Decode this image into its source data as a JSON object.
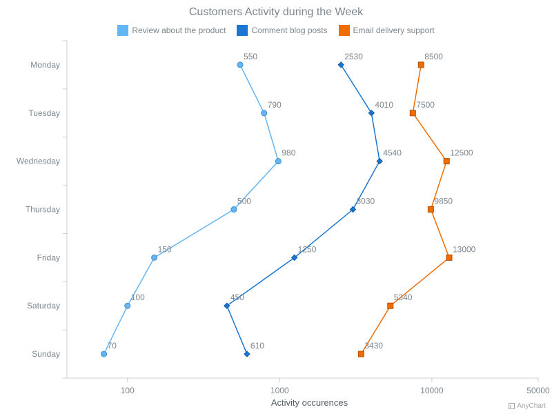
{
  "chart_data": {
    "type": "line",
    "title": "Customers Activity during the Week",
    "xlabel": "Activity occurences",
    "ylabel": "",
    "x_scale": "log",
    "xlim": [
      40,
      50000
    ],
    "x_ticks": [
      100,
      1000,
      10000,
      50000
    ],
    "x_tick_labels": [
      "100",
      "1000",
      "10000",
      "50000"
    ],
    "categories": [
      "Monday",
      "Tuesday",
      "Wednesday",
      "Thursday",
      "Friday",
      "Saturday",
      "Sunday"
    ],
    "legend_position": "top",
    "grid": false,
    "series": [
      {
        "name": "Review about the product",
        "color": "#64b5f6",
        "marker": "circle",
        "values": [
          550,
          790,
          980,
          500,
          150,
          100,
          70
        ]
      },
      {
        "name": "Comment blog posts",
        "color": "#1976d2",
        "marker": "diamond",
        "values": [
          2530,
          4010,
          4540,
          3030,
          1250,
          450,
          610
        ]
      },
      {
        "name": "Email delivery support",
        "color": "#ef6c00",
        "marker": "square",
        "values": [
          8500,
          7500,
          12500,
          9850,
          13000,
          5340,
          3430
        ]
      }
    ]
  },
  "credits": {
    "label": "AnyChart"
  }
}
